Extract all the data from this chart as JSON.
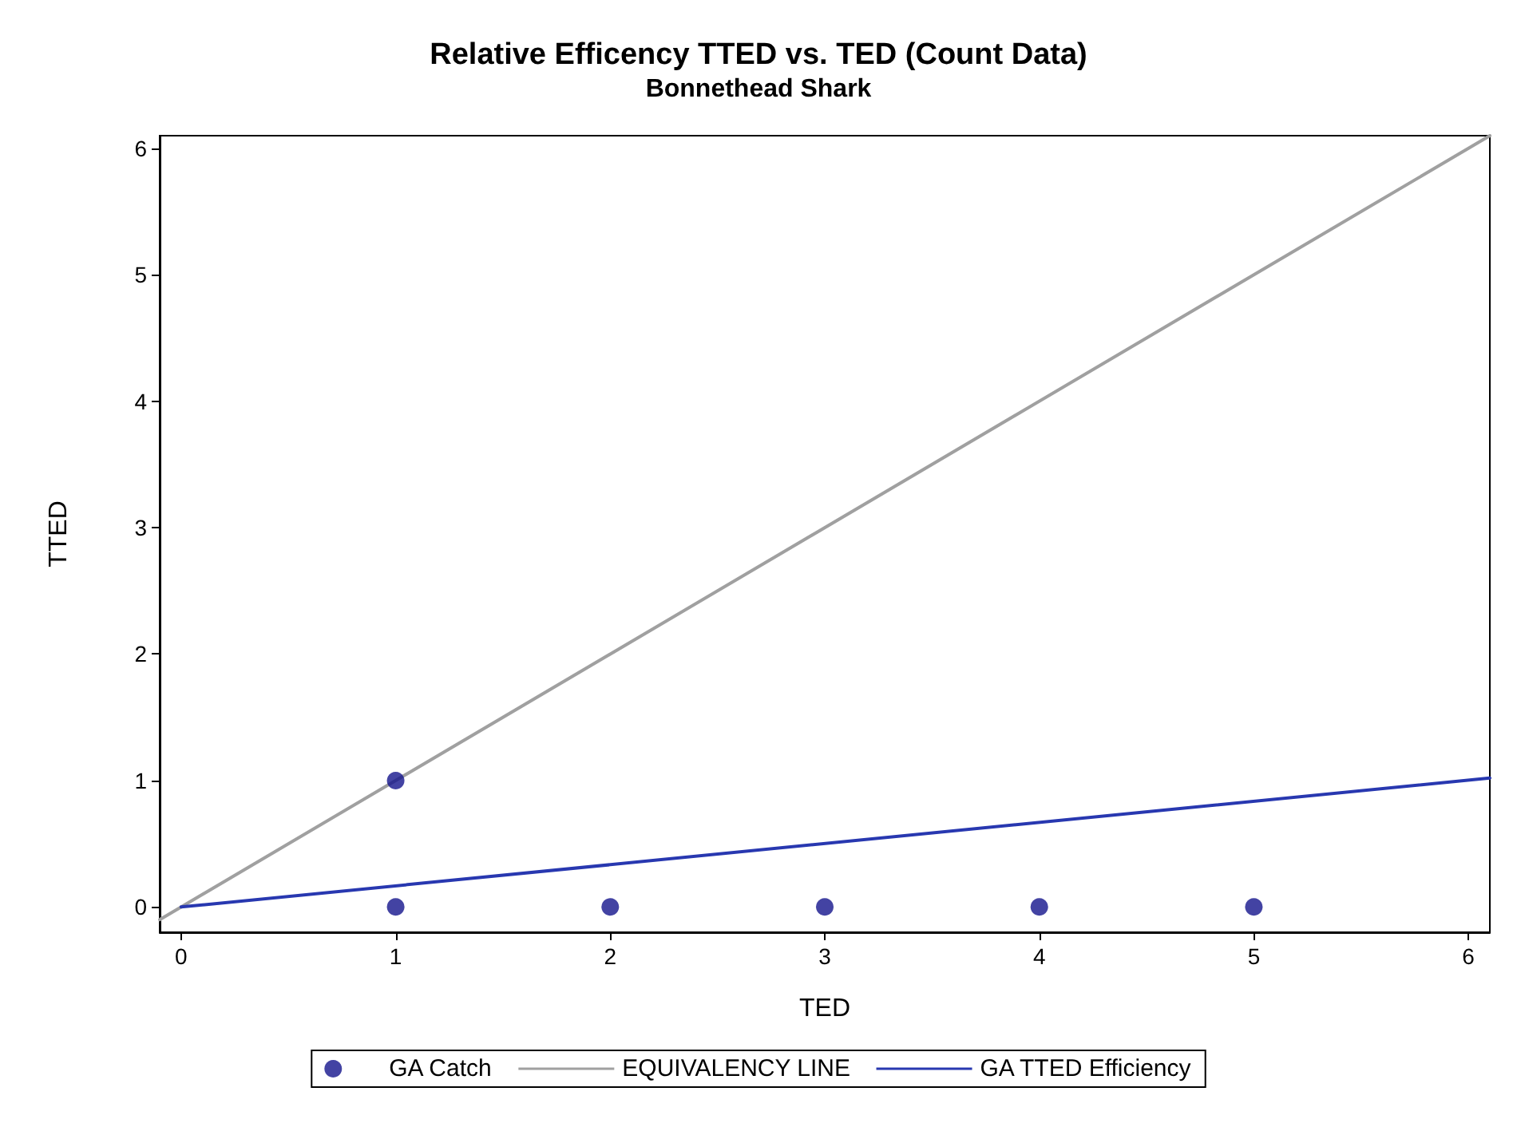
{
  "chart_data": {
    "type": "scatter",
    "title": "Relative Efficency TTED vs. TED (Count Data)",
    "subtitle": "Bonnethead Shark",
    "xlabel": "TED",
    "ylabel": "TTED",
    "xlim": [
      -0.1,
      6.1
    ],
    "ylim": [
      -0.2,
      6.1
    ],
    "xticks": [
      0,
      1,
      2,
      3,
      4,
      5,
      6
    ],
    "yticks": [
      0,
      1,
      2,
      3,
      4,
      5,
      6
    ],
    "grid": false,
    "legend": "bottom",
    "series": [
      {
        "name": "GA Catch",
        "marker": "circle",
        "color": "#14148c",
        "x": [
          1,
          1,
          2,
          3,
          4,
          5
        ],
        "values": [
          1,
          0,
          0,
          0,
          0,
          0
        ]
      },
      {
        "name": "EQUIVALENCY LINE",
        "type": "line",
        "marker": "none",
        "color": "#a0a0a0",
        "x": [
          -0.1,
          6.1
        ],
        "values": [
          -0.1,
          6.1
        ]
      },
      {
        "name": "GA TTED Efficiency",
        "type": "line",
        "marker": "none",
        "color": "#2838b0",
        "x": [
          0,
          6.1
        ],
        "values": [
          0,
          1.02
        ]
      }
    ]
  }
}
